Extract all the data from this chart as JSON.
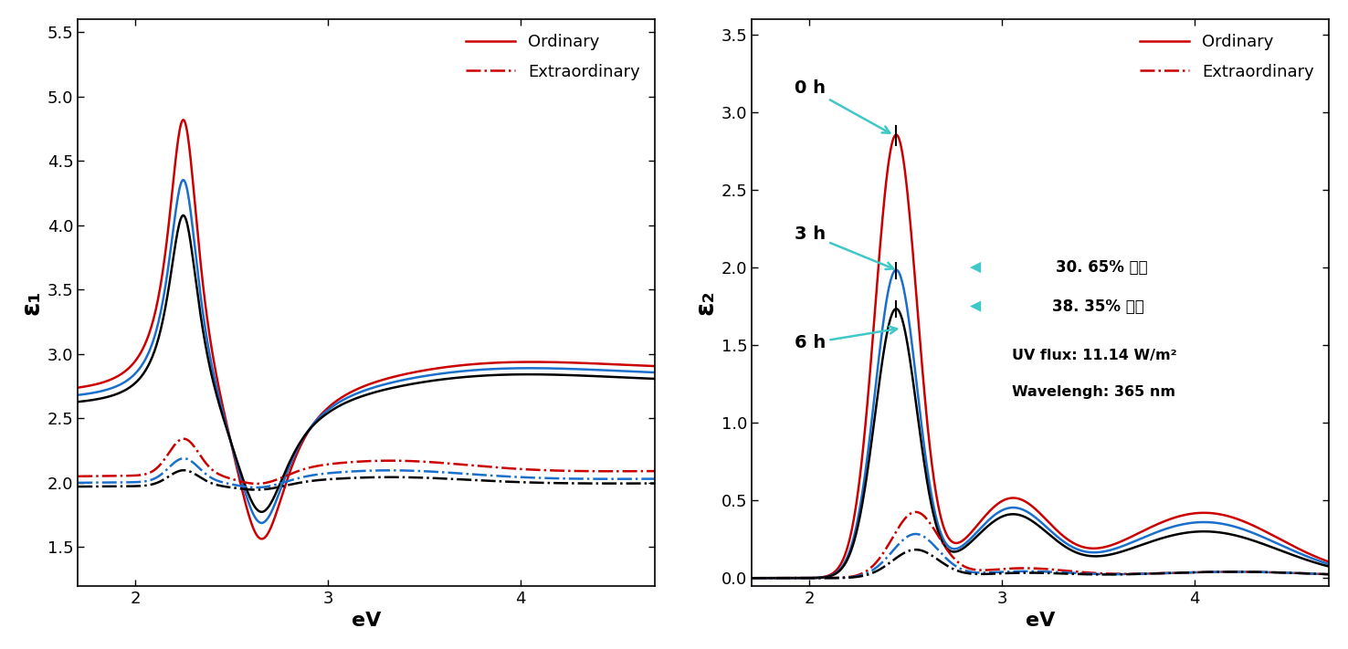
{
  "left_ylabel": "ε₁",
  "right_ylabel": "ε₂",
  "xlabel": "eV",
  "left_ylim": [
    1.2,
    5.6
  ],
  "right_ylim": [
    -0.05,
    3.6
  ],
  "left_yticks": [
    1.5,
    2.0,
    2.5,
    3.0,
    3.5,
    4.0,
    4.5,
    5.0,
    5.5
  ],
  "right_yticks": [
    0.0,
    0.5,
    1.0,
    1.5,
    2.0,
    2.5,
    3.0,
    3.5
  ],
  "xlim": [
    1.7,
    4.7
  ],
  "xticks": [
    2.0,
    3.0,
    4.0
  ],
  "legend_ordinary": "Ordinary",
  "legend_extraordinary": "Extraordinary",
  "annotation_0h": "0 h",
  "annotation_3h": "3 h",
  "annotation_6h": "6 h",
  "arrow1_text": "30. 65% 감소",
  "arrow2_text": "38. 35% 감소",
  "uvflux_text": "UV flux: 11.14 W/m²",
  "wavelength_text": "Wavelengh: 365 nm",
  "color_red": "#cc0000",
  "color_blue": "#1a6fcc",
  "color_black": "#000000",
  "color_cyan_arrow": "#40c8c8",
  "background": "#ffffff"
}
